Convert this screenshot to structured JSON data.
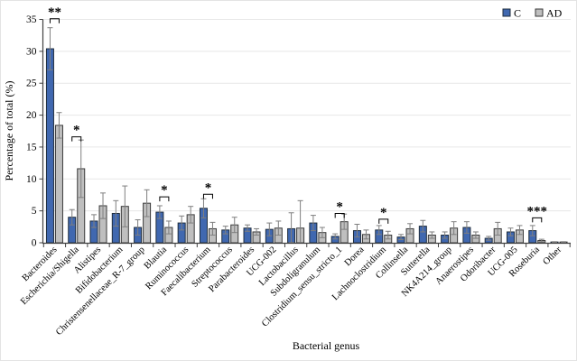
{
  "chart_data": {
    "type": "bar",
    "title": "",
    "ylabel": "Percentage of total (%)",
    "xlabel": "Bacterial genus",
    "ylim": [
      0,
      35
    ],
    "yticks": [
      0,
      5,
      10,
      15,
      20,
      25,
      30,
      35
    ],
    "grid": true,
    "legend_position": "top-right",
    "gridline_color": "#e7e7e7",
    "axis_color": "#404040",
    "error_bar_color": "#7f7f7f",
    "categories": [
      "Bacteroides",
      "Escherichia/Shigella",
      "Alistipes",
      "Bifidobacterium",
      "Christensenellaceae_R-7_group",
      "Blautia",
      "Ruminococcus",
      "Faecalibacterium",
      "Streptococcus",
      "Parabacteroides",
      "UCG-002",
      "Lactobacillus",
      "Subdoligranulum",
      "Clostridium_sensu_stricto_1",
      "Dorea",
      "Lachnoclostridium",
      "Collinsella",
      "Sutterella",
      "NK4A214_group",
      "Anaerostipes",
      "Odoribacter",
      "UCG-005",
      "Roseburia",
      "Other"
    ],
    "series": [
      {
        "name": "C",
        "color": "#4068b0",
        "border_color": "#1f2d3d",
        "values": [
          30.4,
          4.0,
          3.4,
          4.6,
          2.4,
          4.8,
          3.1,
          5.4,
          2.0,
          2.3,
          2.1,
          2.2,
          3.1,
          1.0,
          1.9,
          2.0,
          0.9,
          2.6,
          1.2,
          2.4,
          0.7,
          1.7,
          1.9,
          0.12
        ],
        "errors": [
          3.3,
          1.2,
          1.0,
          2.0,
          1.2,
          1.0,
          1.1,
          1.5,
          0.6,
          0.5,
          1.0,
          2.5,
          1.2,
          0.4,
          1.0,
          0.7,
          0.4,
          0.9,
          0.5,
          0.9,
          0.3,
          0.6,
          0.8,
          0.05
        ]
      },
      {
        "name": "AD",
        "color": "#bfbfbf",
        "border_color": "#3a3a3a",
        "values": [
          18.4,
          11.6,
          5.8,
          5.7,
          6.2,
          2.4,
          4.4,
          2.2,
          2.8,
          1.7,
          2.3,
          2.3,
          1.6,
          3.3,
          1.3,
          1.2,
          2.2,
          1.2,
          2.3,
          1.2,
          2.2,
          2.0,
          0.35,
          0.12
        ],
        "errors": [
          2.0,
          4.5,
          2.0,
          3.2,
          2.1,
          1.0,
          1.3,
          1.0,
          1.2,
          0.5,
          1.1,
          4.3,
          0.8,
          1.2,
          0.7,
          0.6,
          0.8,
          0.5,
          1.0,
          0.5,
          1.0,
          0.7,
          0.2,
          0.05
        ]
      }
    ],
    "significance": [
      {
        "category": "Bacteroides",
        "label": "**",
        "bracket_y": 35.1
      },
      {
        "category": "Escherichia/Shigella",
        "label": "*",
        "bracket_y": 16.6
      },
      {
        "category": "Blautia",
        "label": "*",
        "bracket_y": 7.2
      },
      {
        "category": "Faecalibacterium",
        "label": "*",
        "bracket_y": 7.6
      },
      {
        "category": "Clostridium_sensu_stricto_1",
        "label": "*",
        "bracket_y": 4.6
      },
      {
        "category": "Lachnoclostridium",
        "label": "*",
        "bracket_y": 3.7
      },
      {
        "category": "Roseburia",
        "label": "***",
        "bracket_y": 3.9
      }
    ]
  }
}
